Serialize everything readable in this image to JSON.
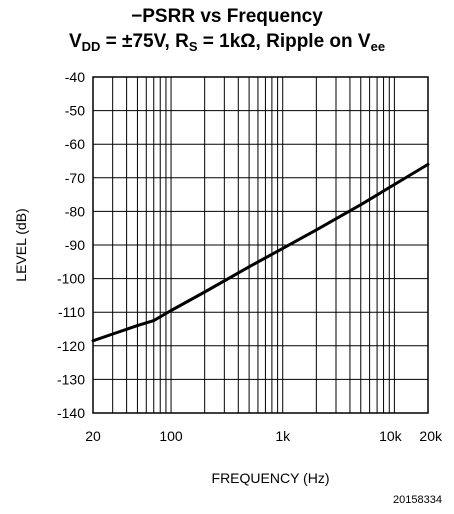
{
  "title": {
    "line1": "−PSRR vs Frequency",
    "vdd_prefix": "V",
    "vdd_sub": "DD",
    "vdd_value": " = ±75V, R",
    "rs_sub": "S",
    "rs_value": " = 1kΩ, Ripple on V",
    "vee_sub": "ee"
  },
  "figure_id": "20158334",
  "chart_data": {
    "type": "line",
    "title": "−PSRR vs Frequency  V_DD = ±75V, R_S = 1kΩ, Ripple on V_ee",
    "xlabel": "FREQUENCY (Hz)",
    "ylabel": "LEVEL (dB)",
    "xscale": "log",
    "xlim": [
      20,
      20000
    ],
    "ylim": [
      -140,
      -40
    ],
    "xticks": [
      20,
      100,
      1000,
      10000,
      20000
    ],
    "xtick_labels": [
      "20",
      "100",
      "1k",
      "10k",
      "20k"
    ],
    "yticks": [
      -40,
      -50,
      -60,
      -70,
      -80,
      -90,
      -100,
      -110,
      -120,
      -130,
      -140
    ],
    "ytick_labels": [
      "-40",
      "-50",
      "-60",
      "-70",
      "-80",
      "-90",
      "-100",
      "-110",
      "-120",
      "-130",
      "-140"
    ],
    "grid": true,
    "series": [
      {
        "x": [
          20,
          30,
          50,
          70,
          100,
          200,
          500,
          1000,
          2000,
          5000,
          10000,
          20000
        ],
        "values": [
          -118.5,
          -116.5,
          -114,
          -112.5,
          -109.5,
          -104,
          -96.5,
          -91,
          -85.5,
          -78,
          -72,
          -66
        ]
      }
    ]
  }
}
